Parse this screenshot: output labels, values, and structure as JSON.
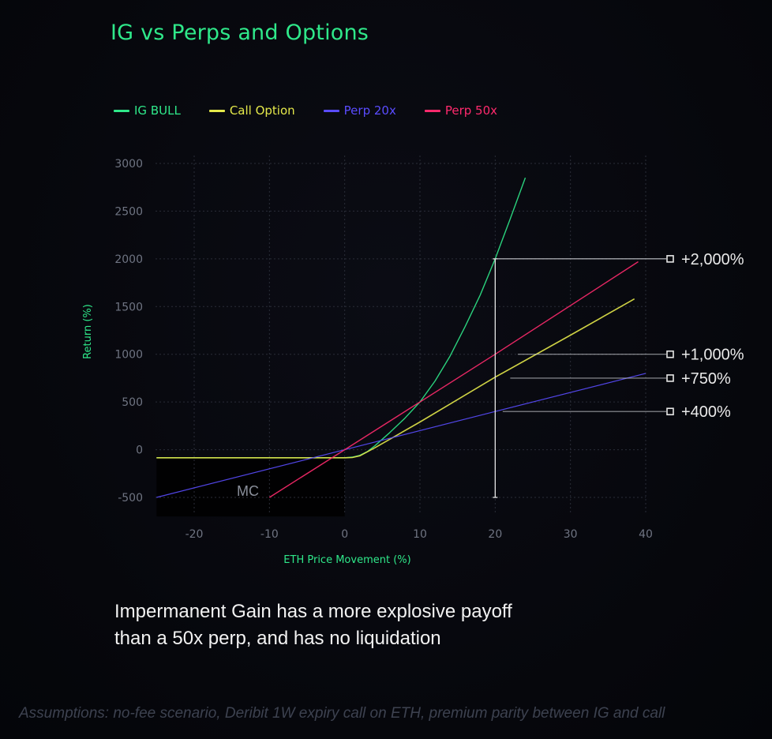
{
  "colors": {
    "ig_bull": "#2fe88a",
    "call_option": "#e4e84a",
    "perp_20x": "#5a4cff",
    "perp_50x": "#ff2a6d",
    "grid": "#2a2d38",
    "callout": "#cfd1d6"
  },
  "chart_data": {
    "type": "line",
    "title": "IG vs Perps and Options",
    "xlabel": "ETH Price Movement (%)",
    "ylabel": "Return (%)",
    "xlim": [
      -25,
      40
    ],
    "ylim": [
      -500,
      3000
    ],
    "x_ticks": [
      -20,
      -10,
      0,
      10,
      20,
      30,
      40
    ],
    "y_ticks": [
      -500,
      0,
      500,
      1000,
      1500,
      2000,
      2500,
      3000
    ],
    "grid": true,
    "legend_position": "top-left",
    "series": [
      {
        "name": "IG BULL",
        "color_key": "ig_bull",
        "x": [
          -25,
          0,
          1,
          2,
          3,
          4,
          5,
          6,
          8,
          10,
          12,
          14,
          16,
          18,
          20,
          22,
          24
        ],
        "y": [
          -85,
          -85,
          -78,
          -60,
          -20,
          40,
          110,
          180,
          330,
          500,
          720,
          980,
          1290,
          1620,
          2000,
          2420,
          2850
        ]
      },
      {
        "name": "Call Option",
        "color_key": "call_option",
        "x": [
          -25,
          0,
          1,
          2,
          4,
          10,
          20,
          30,
          38.5
        ],
        "y": [
          -85,
          -85,
          -82,
          -65,
          20,
          290,
          760,
          1200,
          1580
        ]
      },
      {
        "name": "Perp 20x",
        "color_key": "perp_20x",
        "x": [
          -25,
          0,
          20,
          40
        ],
        "y": [
          -500,
          0,
          400,
          800
        ]
      },
      {
        "name": "Perp 50x",
        "color_key": "perp_50x",
        "x": [
          -10,
          0,
          20,
          39
        ],
        "y": [
          -500,
          0,
          1000,
          1970
        ]
      }
    ],
    "annotations": {
      "mc_label": "MC",
      "mc_region": {
        "x": [
          -25,
          0
        ],
        "y": [
          -700,
          -85
        ]
      },
      "vertical_line": {
        "x": 20,
        "y": [
          -500,
          2000
        ]
      },
      "callouts": [
        {
          "label": "+2,000%",
          "y": 2000,
          "from_x": 20
        },
        {
          "label": "+1,000%",
          "y": 1000,
          "from_x": 23
        },
        {
          "label": "+750%",
          "y": 750,
          "from_x": 22
        },
        {
          "label": "+400%",
          "y": 400,
          "from_x": 21
        }
      ]
    }
  },
  "caption": {
    "line1": "Impermanent Gain has a more explosive  payoff",
    "line2": "than a 50x perp, and has no liquidation"
  },
  "footnote": "Assumptions: no-fee scenario, Deribit 1W expiry call on ETH, premium parity between IG and call"
}
